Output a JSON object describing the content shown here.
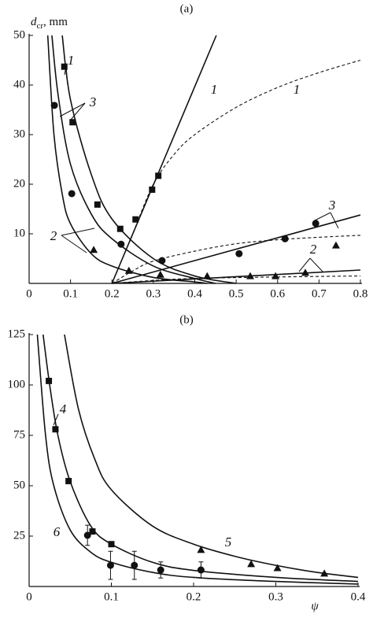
{
  "chart_data": [
    {
      "type": "scatter",
      "panel_label": "(a)",
      "y_label": "d",
      "y_label_sub": "cr",
      "y_label_unit": ", mm",
      "xlim": [
        0,
        0.8
      ],
      "xticks": [
        0,
        0.1,
        0.2,
        0.3,
        0.4,
        0.5,
        0.6,
        0.7,
        0.8
      ],
      "ylim": [
        0,
        50
      ],
      "yticks": [
        10,
        20,
        30,
        40,
        50
      ],
      "color": "#111111",
      "series": [
        {
          "marker": "square",
          "x": [
            0.085,
            0.105,
            0.165,
            0.22,
            0.257,
            0.297,
            0.312
          ],
          "values": [
            43.7,
            32.5,
            15.9,
            11,
            12.9,
            18.9,
            21.7
          ]
        },
        {
          "marker": "circle",
          "x": [
            0.061,
            0.103,
            0.222,
            0.321,
            0.507,
            0.618,
            0.692
          ],
          "values": [
            35.9,
            18.1,
            7.9,
            4.6,
            6.0,
            9.0,
            12.1
          ]
        },
        {
          "marker": "triangle",
          "x": [
            0.156,
            0.241,
            0.317,
            0.43,
            0.534,
            0.595,
            0.667,
            0.741
          ],
          "values": [
            6.7,
            2.5,
            1.7,
            1.4,
            1.4,
            1.4,
            2.1,
            7.6
          ]
        },
        {
          "line": "solid",
          "x": [
            0.08,
            0.1,
            0.15,
            0.2,
            0.3,
            0.4,
            0.5
          ],
          "values": [
            50,
            37,
            22,
            13,
            5,
            1.5,
            0
          ]
        },
        {
          "line": "solid",
          "x": [
            0.055,
            0.07,
            0.1,
            0.15,
            0.2,
            0.3,
            0.4,
            0.45
          ],
          "values": [
            50,
            38,
            24,
            14,
            9,
            3.5,
            1,
            0
          ]
        },
        {
          "line": "solid",
          "x": [
            0.045,
            0.06,
            0.08,
            0.1,
            0.15,
            0.2,
            0.3,
            0.4,
            0.43
          ],
          "values": [
            50,
            30,
            18,
            12,
            6,
            3.5,
            1.2,
            0.3,
            0
          ]
        },
        {
          "line": "straight",
          "x": [
            0.2,
            0.452
          ],
          "values": [
            0,
            50
          ]
        },
        {
          "line": "straight",
          "x": [
            0.2,
            0.8
          ],
          "values": [
            0,
            13.8
          ]
        },
        {
          "line": "straight",
          "x": [
            0.2,
            0.8
          ],
          "values": [
            0,
            2.7
          ]
        },
        {
          "line": "dashed",
          "x": [
            0.2,
            0.25,
            0.3,
            0.35,
            0.4,
            0.5,
            0.6,
            0.7,
            0.8
          ],
          "values": [
            0,
            10,
            20,
            26,
            30,
            35.5,
            39.5,
            42.5,
            45
          ]
        },
        {
          "line": "dashed",
          "x": [
            0.2,
            0.25,
            0.3,
            0.4,
            0.5,
            0.6,
            0.7,
            0.8
          ],
          "values": [
            0,
            2.5,
            4.5,
            6.5,
            8,
            8.8,
            9.3,
            9.7
          ]
        },
        {
          "line": "dashed",
          "x": [
            0.2,
            0.3,
            0.4,
            0.6,
            0.8
          ],
          "values": [
            0,
            0.6,
            1,
            1.3,
            1.5
          ]
        }
      ],
      "annotations": [
        "1",
        "3",
        "2",
        "1",
        "1",
        "3",
        "2"
      ]
    },
    {
      "type": "scatter",
      "panel_label": "(b)",
      "x_label": "ψ",
      "xlim": [
        0,
        0.4
      ],
      "xticks": [
        0,
        0.1,
        0.2,
        0.3,
        0.4
      ],
      "ylim": [
        0,
        125
      ],
      "yticks": [
        25,
        50,
        75,
        100,
        125
      ],
      "color": "#111111",
      "series": [
        {
          "marker": "square",
          "x": [
            0.024,
            0.032,
            0.048,
            0.077,
            0.1
          ],
          "values": [
            102,
            78,
            52.3,
            27.3,
            21
          ]
        },
        {
          "marker": "circle",
          "x": [
            0.071,
            0.099,
            0.128,
            0.16,
            0.209
          ],
          "values": [
            25.4,
            10.5,
            10.5,
            8.2,
            8.2
          ],
          "errors": [
            5,
            7,
            7,
            4,
            4
          ]
        },
        {
          "marker": "triangle",
          "x": [
            0.209,
            0.27,
            0.302,
            0.359
          ],
          "values": [
            18,
            11,
            9,
            6.3
          ]
        },
        {
          "line": "solid",
          "x": [
            0.043,
            0.06,
            0.08,
            0.1,
            0.15,
            0.2,
            0.25,
            0.3,
            0.35,
            0.4
          ],
          "values": [
            125,
            88,
            63,
            48,
            30,
            21,
            15,
            10.5,
            7,
            4.5
          ]
        },
        {
          "line": "solid",
          "x": [
            0.017,
            0.025,
            0.035,
            0.05,
            0.075,
            0.1,
            0.15,
            0.2,
            0.3,
            0.4
          ],
          "values": [
            125,
            100,
            75,
            52,
            30,
            21,
            12,
            8,
            4.5,
            2.5
          ]
        },
        {
          "line": "solid",
          "x": [
            0.01,
            0.02,
            0.03,
            0.05,
            0.075,
            0.1,
            0.15,
            0.2,
            0.3,
            0.4
          ],
          "values": [
            125,
            75,
            50,
            28,
            17,
            12,
            7,
            4.5,
            2.5,
            1.2
          ]
        }
      ],
      "annotations": [
        "4",
        "5",
        "6"
      ]
    }
  ]
}
